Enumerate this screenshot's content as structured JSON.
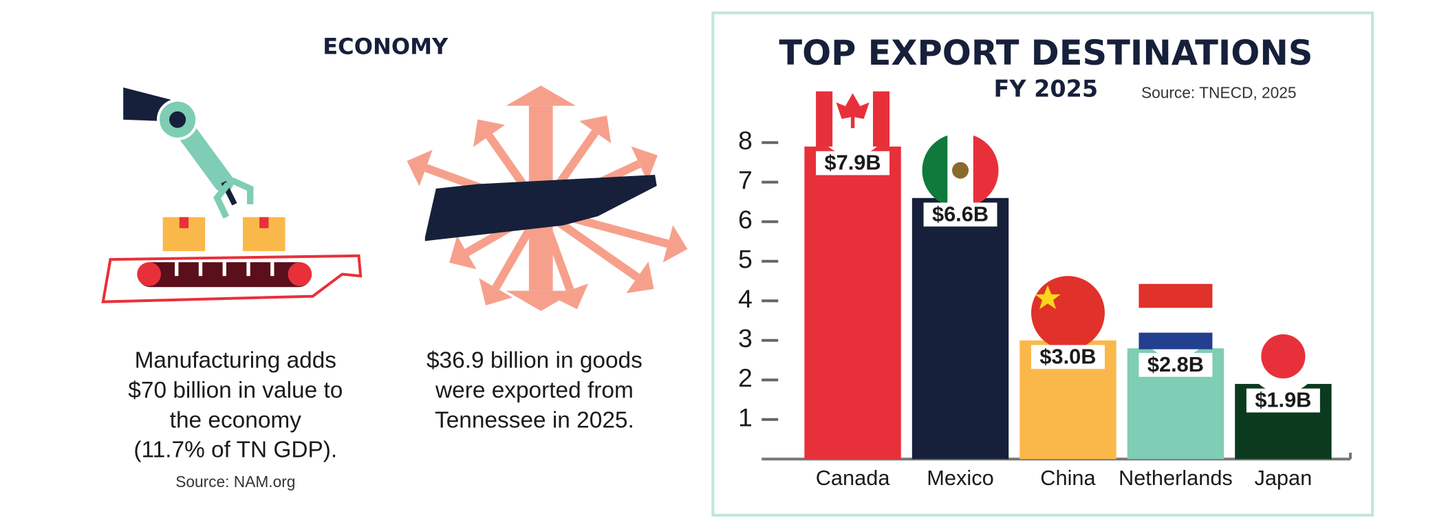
{
  "economy": {
    "heading": "ECONOMY",
    "manufacturing": [
      "Manufacturing adds",
      "$70 billion in value to",
      "the economy",
      "(11.7% of TN GDP)."
    ],
    "manufacturing_source": "Source: NAM.org",
    "exports": [
      "$36.9 billion in goods",
      "were exported from",
      "Tennessee in 2025."
    ]
  },
  "chart_data": {
    "type": "bar",
    "title": "TOP EXPORT DESTINATIONS",
    "subtitle": "FY 2025",
    "source": "Source: TNECD, 2025",
    "categories": [
      "Canada",
      "Mexico",
      "China",
      "Netherlands",
      "Japan"
    ],
    "values": [
      7.9,
      6.6,
      3.0,
      2.8,
      1.9
    ],
    "value_labels": [
      "$7.9B",
      "$6.6B",
      "$3.0B",
      "$2.8B",
      "$1.9B"
    ],
    "colors": [
      "#e8303a",
      "#16203a",
      "#fbb84a",
      "#7ecdb4",
      "#0c3a1f"
    ],
    "ylim": [
      0,
      8
    ],
    "yticks": [
      1,
      2,
      3,
      4,
      5,
      6,
      7,
      8
    ]
  }
}
